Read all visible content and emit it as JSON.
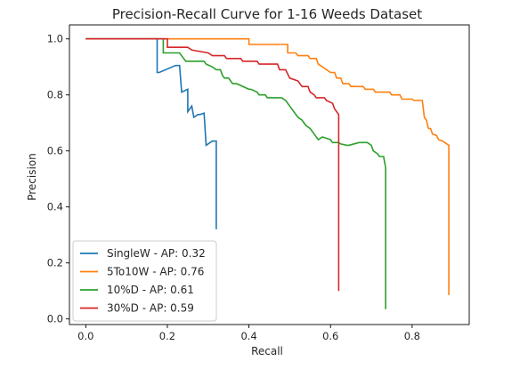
{
  "chart_data": {
    "type": "line",
    "title": "Precision-Recall Curve for 1-16 Weeds Dataset",
    "xlabel": "Recall",
    "ylabel": "Precision",
    "xlim": [
      -0.04,
      0.94
    ],
    "ylim": [
      -0.02,
      1.05
    ],
    "x_ticks": [
      0.0,
      0.2,
      0.4,
      0.6,
      0.8
    ],
    "x_tick_labels": [
      "0.0",
      "0.2",
      "0.4",
      "0.6",
      "0.8"
    ],
    "y_ticks": [
      0.0,
      0.2,
      0.4,
      0.6,
      0.8,
      1.0
    ],
    "y_tick_labels": [
      "0.0",
      "0.2",
      "0.4",
      "0.6",
      "0.8",
      "1.0"
    ],
    "grid": false,
    "legend_position": "lower-left",
    "series": [
      {
        "name": "SingleW - AP: 0.32",
        "color": "#1f77b4",
        "x": [
          0.0,
          0.175,
          0.175,
          0.18,
          0.22,
          0.23,
          0.235,
          0.25,
          0.25,
          0.26,
          0.265,
          0.275,
          0.28,
          0.29,
          0.295,
          0.31,
          0.32,
          0.32
        ],
        "y": [
          1.0,
          1.0,
          0.88,
          0.88,
          0.905,
          0.905,
          0.81,
          0.82,
          0.74,
          0.76,
          0.72,
          0.73,
          0.73,
          0.735,
          0.62,
          0.635,
          0.635,
          0.32
        ]
      },
      {
        "name": "5To10W - AP: 0.76",
        "color": "#ff7f0e",
        "x": [
          0.0,
          0.4,
          0.4,
          0.495,
          0.495,
          0.515,
          0.52,
          0.545,
          0.55,
          0.565,
          0.57,
          0.58,
          0.6,
          0.61,
          0.615,
          0.625,
          0.63,
          0.645,
          0.65,
          0.68,
          0.685,
          0.705,
          0.71,
          0.745,
          0.75,
          0.77,
          0.775,
          0.8,
          0.805,
          0.825,
          0.83,
          0.835,
          0.84,
          0.845,
          0.85,
          0.86,
          0.865,
          0.875,
          0.88,
          0.89,
          0.89
        ],
        "y": [
          1.0,
          1.0,
          0.98,
          0.98,
          0.95,
          0.95,
          0.94,
          0.94,
          0.93,
          0.93,
          0.91,
          0.9,
          0.88,
          0.88,
          0.86,
          0.86,
          0.84,
          0.84,
          0.83,
          0.83,
          0.82,
          0.82,
          0.81,
          0.81,
          0.8,
          0.8,
          0.785,
          0.785,
          0.78,
          0.78,
          0.72,
          0.71,
          0.68,
          0.68,
          0.66,
          0.655,
          0.64,
          0.635,
          0.63,
          0.62,
          0.085
        ]
      },
      {
        "name": "10%D - AP: 0.61",
        "color": "#2ca02c",
        "x": [
          0.0,
          0.19,
          0.19,
          0.2,
          0.23,
          0.24,
          0.245,
          0.29,
          0.295,
          0.31,
          0.32,
          0.33,
          0.335,
          0.34,
          0.35,
          0.355,
          0.36,
          0.37,
          0.4,
          0.405,
          0.42,
          0.425,
          0.44,
          0.445,
          0.48,
          0.49,
          0.5,
          0.51,
          0.52,
          0.53,
          0.54,
          0.55,
          0.56,
          0.57,
          0.58,
          0.6,
          0.605,
          0.62,
          0.625,
          0.64,
          0.645,
          0.67,
          0.68,
          0.69,
          0.7,
          0.705,
          0.715,
          0.72,
          0.73,
          0.735,
          0.735
        ],
        "y": [
          1.0,
          1.0,
          0.95,
          0.95,
          0.95,
          0.93,
          0.92,
          0.92,
          0.91,
          0.9,
          0.89,
          0.89,
          0.87,
          0.86,
          0.86,
          0.85,
          0.84,
          0.84,
          0.82,
          0.82,
          0.81,
          0.8,
          0.8,
          0.79,
          0.79,
          0.78,
          0.76,
          0.74,
          0.72,
          0.71,
          0.69,
          0.68,
          0.66,
          0.64,
          0.65,
          0.64,
          0.63,
          0.63,
          0.625,
          0.62,
          0.62,
          0.63,
          0.63,
          0.63,
          0.62,
          0.6,
          0.59,
          0.58,
          0.58,
          0.54,
          0.035
        ]
      },
      {
        "name": "30%D - AP: 0.59",
        "color": "#d62728",
        "x": [
          0.0,
          0.2,
          0.2,
          0.25,
          0.26,
          0.3,
          0.31,
          0.34,
          0.345,
          0.38,
          0.385,
          0.42,
          0.425,
          0.47,
          0.475,
          0.49,
          0.5,
          0.52,
          0.53,
          0.545,
          0.55,
          0.56,
          0.565,
          0.585,
          0.59,
          0.605,
          0.61,
          0.62,
          0.62
        ],
        "y": [
          1.0,
          1.0,
          0.97,
          0.97,
          0.96,
          0.95,
          0.94,
          0.94,
          0.93,
          0.93,
          0.92,
          0.92,
          0.91,
          0.91,
          0.89,
          0.89,
          0.86,
          0.85,
          0.83,
          0.83,
          0.81,
          0.8,
          0.79,
          0.79,
          0.78,
          0.77,
          0.75,
          0.73,
          0.1
        ]
      }
    ]
  }
}
